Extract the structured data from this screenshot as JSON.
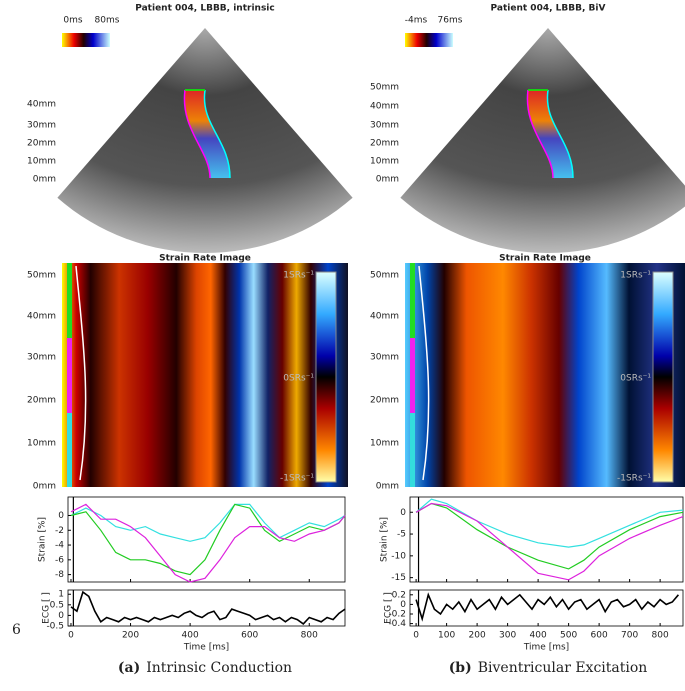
{
  "panels": [
    {
      "title": "Patient 004, LBBB, intrinsic",
      "colorbar_labels": [
        "0ms",
        "80ms"
      ],
      "depth_ticks": [
        "40mm",
        "30mm",
        "20mm",
        "10mm",
        "0mm"
      ],
      "image_title": "Strain Rate Image",
      "image_ticks": [
        "50mm",
        "40mm",
        "30mm",
        "20mm",
        "10mm",
        "0mm"
      ],
      "sr_labels": [
        "1SRs⁻¹",
        "0SRs⁻¹",
        "-1SRs⁻¹"
      ],
      "caption_tag": "(a)",
      "caption": "Intrinsic Conduction"
    },
    {
      "title": "Patient 004, LBBB, BiV",
      "colorbar_labels": [
        "-4ms",
        "76ms"
      ],
      "depth_ticks": [
        "50mm",
        "40mm",
        "30mm",
        "20mm",
        "10mm",
        "0mm"
      ],
      "image_title": "Strain Rate Image",
      "image_ticks": [
        "50mm",
        "40mm",
        "30mm",
        "20mm",
        "10mm",
        "0mm"
      ],
      "sr_labels": [
        "1SRs⁻¹",
        "0SRs⁻¹",
        "-1SRs⁻¹"
      ],
      "caption_tag": "(b)",
      "caption": "Biventricular Excitation"
    }
  ],
  "page_number": "6",
  "chart_data": [
    {
      "type": "line",
      "y_label": "Strain [%]",
      "x": [
        0,
        50,
        100,
        150,
        200,
        250,
        300,
        350,
        400,
        450,
        500,
        550,
        600,
        650,
        700,
        750,
        800,
        850,
        900,
        920
      ],
      "series": [
        {
          "color": "#33e0e0",
          "values": [
            0,
            1,
            0,
            -1.5,
            -2,
            -1.5,
            -2.5,
            -3,
            -3.5,
            -3,
            -1,
            1.5,
            1.5,
            -1,
            -3,
            -2,
            -1,
            -1.5,
            -0.5,
            0
          ]
        },
        {
          "color": "#22cc22",
          "values": [
            0,
            0.5,
            -2,
            -5,
            -6,
            -6,
            -6.5,
            -7.5,
            -8,
            -6,
            -2,
            1.5,
            1,
            -2,
            -3.5,
            -2.5,
            -1.5,
            -2,
            -1,
            0
          ]
        },
        {
          "color": "#dd22dd",
          "values": [
            0.5,
            1.5,
            -0.5,
            -0.5,
            -1.5,
            -3,
            -5.5,
            -8,
            -9,
            -8.5,
            -6,
            -3,
            -1.5,
            -1.5,
            -3,
            -3.5,
            -2.5,
            -2,
            -1,
            0
          ]
        }
      ],
      "xlim": [
        -10,
        920
      ],
      "ylim": [
        -9,
        2.5
      ],
      "xticks": [
        0,
        200,
        400,
        600,
        800
      ],
      "yticks": [
        0,
        -2,
        -4,
        -6,
        -8
      ],
      "marker_x": 8
    },
    {
      "type": "line",
      "y_label": "ECG [ ]",
      "x_label": "Time [ms]",
      "x": [
        0,
        20,
        40,
        60,
        80,
        100,
        120,
        140,
        160,
        180,
        200,
        220,
        240,
        260,
        280,
        300,
        320,
        340,
        360,
        380,
        400,
        420,
        440,
        460,
        480,
        500,
        520,
        540,
        560,
        580,
        600,
        620,
        640,
        660,
        680,
        700,
        720,
        740,
        760,
        780,
        800,
        820,
        840,
        860,
        880,
        900,
        920
      ],
      "series": [
        {
          "color": "#000000",
          "values": [
            0.4,
            0.2,
            1.1,
            0.9,
            0.2,
            -0.3,
            -0.1,
            -0.2,
            -0.3,
            -0.1,
            -0.2,
            -0.1,
            -0.2,
            -0.3,
            -0.1,
            -0.2,
            -0.1,
            0.0,
            -0.1,
            0.1,
            0.2,
            0.0,
            -0.1,
            0.1,
            0.2,
            -0.2,
            -0.1,
            0.3,
            0.2,
            0.1,
            0.0,
            -0.2,
            -0.1,
            0.0,
            -0.2,
            -0.1,
            -0.3,
            -0.1,
            -0.2,
            -0.4,
            -0.1,
            -0.2,
            -0.3,
            -0.1,
            -0.2,
            0.1,
            0.3
          ]
        }
      ],
      "xlim": [
        -10,
        920
      ],
      "ylim": [
        -0.5,
        1.2
      ],
      "xticks": [
        0,
        200,
        400,
        600,
        800
      ],
      "yticks": [
        1,
        0.5,
        0,
        -0.5
      ],
      "marker_x": 8
    },
    {
      "type": "line",
      "y_label": "Strain [%]",
      "x": [
        0,
        50,
        100,
        200,
        300,
        400,
        500,
        550,
        600,
        700,
        800,
        875
      ],
      "series": [
        {
          "color": "#33e0e0",
          "values": [
            0,
            3,
            2,
            -2,
            -5,
            -7,
            -8,
            -7.5,
            -6,
            -3,
            0,
            0.5
          ]
        },
        {
          "color": "#22cc22",
          "values": [
            0,
            2,
            1,
            -4,
            -8,
            -11,
            -13,
            -11,
            -8,
            -4,
            -1,
            0
          ]
        },
        {
          "color": "#dd22dd",
          "values": [
            0,
            2,
            1.5,
            -2,
            -8,
            -14,
            -15.5,
            -13.5,
            -10,
            -6,
            -3,
            -1
          ]
        }
      ],
      "xlim": [
        -20,
        875
      ],
      "ylim": [
        -16,
        3.5
      ],
      "xticks": [
        0,
        100,
        200,
        300,
        400,
        500,
        600,
        700,
        800
      ],
      "yticks": [
        0,
        -5,
        -10,
        -15
      ],
      "marker_x": 8
    },
    {
      "type": "line",
      "y_label": "ECG [ ]",
      "x_label": "Time [ms]",
      "x": [
        0,
        20,
        40,
        60,
        80,
        100,
        120,
        140,
        160,
        180,
        200,
        220,
        240,
        260,
        280,
        300,
        320,
        340,
        360,
        380,
        400,
        420,
        440,
        460,
        480,
        500,
        520,
        540,
        560,
        580,
        600,
        620,
        640,
        660,
        680,
        700,
        720,
        740,
        760,
        780,
        800,
        820,
        840,
        860
      ],
      "series": [
        {
          "color": "#000000",
          "values": [
            0.1,
            -0.3,
            0.2,
            -0.1,
            -0.2,
            0.0,
            -0.1,
            0.05,
            -0.15,
            0.1,
            -0.1,
            0.0,
            0.1,
            -0.1,
            0.15,
            0.0,
            0.1,
            0.2,
            0.05,
            -0.1,
            0.1,
            0.0,
            0.15,
            -0.05,
            0.1,
            -0.1,
            0.05,
            0.1,
            -0.1,
            0.0,
            0.1,
            -0.15,
            0.05,
            0.1,
            -0.05,
            0.0,
            0.1,
            -0.1,
            0.05,
            -0.05,
            0.1,
            0.0,
            0.05,
            0.2
          ]
        }
      ],
      "xlim": [
        -20,
        875
      ],
      "ylim": [
        -0.45,
        0.3
      ],
      "xticks": [
        0,
        100,
        200,
        300,
        400,
        500,
        600,
        700,
        800
      ],
      "yticks": [
        0.2,
        0,
        -0.2,
        -0.4
      ],
      "marker_x": 8
    }
  ]
}
